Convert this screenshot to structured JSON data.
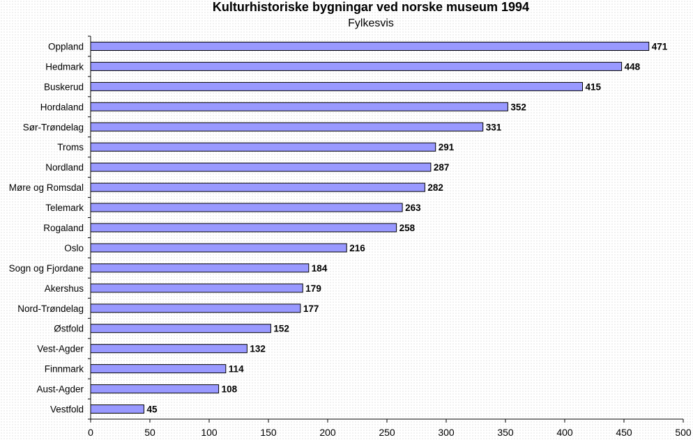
{
  "chart_data": {
    "type": "bar",
    "orientation": "horizontal",
    "title": "Kulturhistoriske bygningar ved norske museum 1994",
    "subtitle": "Fylkesvis",
    "categories": [
      "Oppland",
      "Hedmark",
      "Buskerud",
      "Hordaland",
      "Sør-Trøndelag",
      "Troms",
      "Nordland",
      "Møre og Romsdal",
      "Telemark",
      "Rogaland",
      "Oslo",
      "Sogn og Fjordane",
      "Akershus",
      "Nord-Trøndelag",
      "Østfold",
      "Vest-Agder",
      "Finnmark",
      "Aust-Agder",
      "Vestfold"
    ],
    "values": [
      471,
      448,
      415,
      352,
      331,
      291,
      287,
      282,
      263,
      258,
      216,
      184,
      179,
      177,
      152,
      132,
      114,
      108,
      45
    ],
    "xlim": [
      0,
      500
    ],
    "xticks": [
      0,
      50,
      100,
      150,
      200,
      250,
      300,
      350,
      400,
      450,
      500
    ],
    "bar_color": "#9999ff",
    "data_labels": true,
    "legend": "none"
  }
}
